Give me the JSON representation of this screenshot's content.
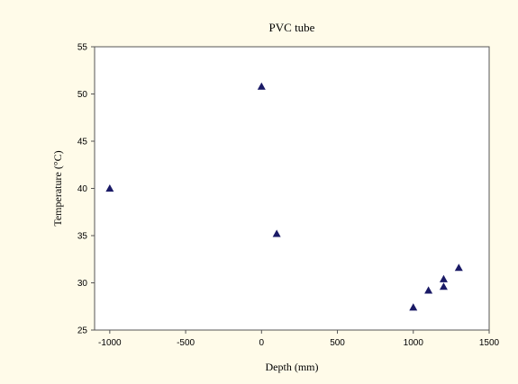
{
  "colors": {
    "page_background": "#fffbe9",
    "plot_background": "#ffffff",
    "axis": "#555555",
    "marker": "#1a1a66"
  },
  "chart_data": {
    "type": "scatter",
    "title": "PVC tube",
    "xlabel": "Depth (mm)",
    "ylabel": "Temperature (°C)",
    "xlim": [
      -1100,
      1500
    ],
    "ylim": [
      25,
      55
    ],
    "xticks": [
      -1000,
      -500,
      0,
      500,
      1000,
      1500
    ],
    "yticks": [
      25,
      30,
      35,
      40,
      45,
      50,
      55
    ],
    "grid": false,
    "legend": "none",
    "marker": "triangle",
    "points": [
      {
        "x": -1000,
        "y": 40
      },
      {
        "x": 0,
        "y": 50.8
      },
      {
        "x": 100,
        "y": 35.2
      },
      {
        "x": 1000,
        "y": 27.4
      },
      {
        "x": 1100,
        "y": 29.2
      },
      {
        "x": 1200,
        "y": 30.4
      },
      {
        "x": 1200,
        "y": 29.6
      },
      {
        "x": 1300,
        "y": 31.6
      }
    ]
  }
}
